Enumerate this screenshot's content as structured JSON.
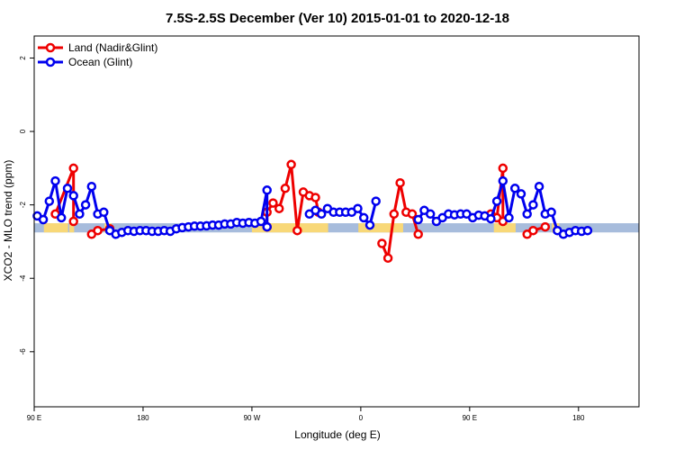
{
  "chart_data": {
    "type": "line",
    "title": "7.5S-2.5S December (Ver 10)   2015-01-01 to 2020-12-18",
    "xlabel": "Longitude (deg E)",
    "ylabel": "XCO2 - MLO trend (ppm)",
    "xlim": [
      0,
      500
    ],
    "ylim": [
      -7.5,
      2.6
    ],
    "x_ticks": [
      {
        "value": 0,
        "label": "90 E"
      },
      {
        "value": 90,
        "label": "180"
      },
      {
        "value": 180,
        "label": "90 W"
      },
      {
        "value": 270,
        "label": "0"
      },
      {
        "value": 360,
        "label": "90 E"
      },
      {
        "value": 450,
        "label": "180"
      }
    ],
    "y_ticks": [
      {
        "value": 2,
        "label": "2"
      },
      {
        "value": 0,
        "label": "0"
      },
      {
        "value": -2,
        "label": "-2"
      },
      {
        "value": -4,
        "label": "-4"
      },
      {
        "value": -6,
        "label": "-6"
      }
    ],
    "legend_position": "top-left",
    "grid": false,
    "series": [
      {
        "name": "Land (Nadir&Glint)",
        "color": "#ee0000",
        "segments": [
          [
            [
              17.5,
              -2.25
            ],
            [
              32.5,
              -1.0
            ],
            [
              32.5,
              -2.45
            ]
          ],
          [
            [
              47.5,
              -2.8
            ],
            [
              52.5,
              -2.7
            ],
            [
              62.5,
              -2.65
            ]
          ],
          [
            [
              192.5,
              -2.6
            ],
            [
              192.5,
              -2.2
            ],
            [
              197.5,
              -1.95
            ],
            [
              202.5,
              -2.1
            ],
            [
              207.5,
              -1.55
            ],
            [
              212.5,
              -0.9
            ],
            [
              217.5,
              -2.7
            ],
            [
              222.5,
              -1.65
            ],
            [
              227.5,
              -1.75
            ],
            [
              232.5,
              -1.8
            ],
            [
              235,
              -2.2
            ]
          ],
          [
            [
              287.5,
              -3.05
            ],
            [
              292.5,
              -3.45
            ],
            [
              297.5,
              -2.25
            ],
            [
              302.5,
              -1.4
            ],
            [
              307.5,
              -2.2
            ],
            [
              312.5,
              -2.25
            ],
            [
              317.5,
              -2.8
            ]
          ],
          [
            [
              377.5,
              -2.25
            ],
            [
              382.5,
              -2.35
            ],
            [
              387.5,
              -1.0
            ],
            [
              387.5,
              -2.45
            ]
          ],
          [
            [
              407.5,
              -2.8
            ],
            [
              412.5,
              -2.7
            ],
            [
              422.5,
              -2.6
            ]
          ]
        ]
      },
      {
        "name": "Ocean (Glint)",
        "color": "#0000ee",
        "segments": [
          [
            [
              2.5,
              -2.3
            ],
            [
              7.5,
              -2.4
            ],
            [
              12.5,
              -1.9
            ],
            [
              17.5,
              -1.35
            ],
            [
              22.5,
              -2.35
            ],
            [
              27.5,
              -1.55
            ],
            [
              32.5,
              -1.75
            ],
            [
              37.5,
              -2.25
            ],
            [
              42.5,
              -2.0
            ],
            [
              47.5,
              -1.5
            ],
            [
              52.5,
              -2.25
            ],
            [
              57.5,
              -2.2
            ],
            [
              62.5,
              -2.7
            ],
            [
              67.5,
              -2.8
            ],
            [
              72.5,
              -2.75
            ],
            [
              77.5,
              -2.7
            ],
            [
              82.5,
              -2.72
            ],
            [
              87.5,
              -2.7
            ],
            [
              92.5,
              -2.7
            ],
            [
              97.5,
              -2.72
            ],
            [
              102.5,
              -2.72
            ],
            [
              107.5,
              -2.7
            ],
            [
              112.5,
              -2.72
            ],
            [
              117.5,
              -2.65
            ],
            [
              122.5,
              -2.62
            ],
            [
              127.5,
              -2.6
            ],
            [
              132.5,
              -2.58
            ],
            [
              137.5,
              -2.58
            ],
            [
              142.5,
              -2.57
            ],
            [
              147.5,
              -2.55
            ],
            [
              152.5,
              -2.55
            ],
            [
              157.5,
              -2.52
            ],
            [
              162.5,
              -2.52
            ],
            [
              167.5,
              -2.48
            ],
            [
              172.5,
              -2.5
            ],
            [
              177.5,
              -2.48
            ],
            [
              182.5,
              -2.5
            ],
            [
              187.5,
              -2.45
            ],
            [
              192.5,
              -1.6
            ],
            [
              192.5,
              -2.6
            ]
          ],
          [
            [
              227.5,
              -2.25
            ],
            [
              232.5,
              -2.15
            ],
            [
              237.5,
              -2.25
            ],
            [
              242.5,
              -2.1
            ],
            [
              247.5,
              -2.2
            ],
            [
              252.5,
              -2.2
            ],
            [
              257.5,
              -2.2
            ],
            [
              262.5,
              -2.2
            ],
            [
              267.5,
              -2.1
            ],
            [
              272.5,
              -2.35
            ],
            [
              277.5,
              -2.55
            ],
            [
              282.5,
              -1.9
            ]
          ],
          [
            [
              317.5,
              -2.4
            ],
            [
              322.5,
              -2.15
            ],
            [
              327.5,
              -2.25
            ],
            [
              332.5,
              -2.45
            ],
            [
              337.5,
              -2.35
            ],
            [
              342.5,
              -2.25
            ],
            [
              347.5,
              -2.27
            ],
            [
              352.5,
              -2.25
            ],
            [
              357.5,
              -2.25
            ],
            [
              362.5,
              -2.35
            ],
            [
              367.5,
              -2.28
            ],
            [
              372.5,
              -2.3
            ],
            [
              377.5,
              -2.38
            ],
            [
              382.5,
              -1.9
            ],
            [
              387.5,
              -1.35
            ],
            [
              392.5,
              -2.35
            ],
            [
              397.5,
              -1.55
            ],
            [
              402.5,
              -1.7
            ],
            [
              407.5,
              -2.25
            ],
            [
              412.5,
              -2.0
            ],
            [
              417.5,
              -1.5
            ],
            [
              422.5,
              -2.25
            ],
            [
              427.5,
              -2.2
            ],
            [
              432.5,
              -2.7
            ],
            [
              437.5,
              -2.8
            ],
            [
              442.5,
              -2.75
            ],
            [
              447.5,
              -2.7
            ],
            [
              452.5,
              -2.72
            ],
            [
              457.5,
              -2.7
            ]
          ]
        ]
      }
    ],
    "background_band": {
      "y_range": [
        -2.75,
        -2.5
      ],
      "ocean_color": "#a7bcdc",
      "land_color": "#f8d878",
      "land_ranges": [
        [
          8,
          28
        ],
        [
          29,
          33
        ],
        [
          58,
          64
        ],
        [
          180,
          243
        ],
        [
          268,
          305
        ],
        [
          380,
          398
        ],
        [
          428,
          434
        ]
      ]
    }
  }
}
